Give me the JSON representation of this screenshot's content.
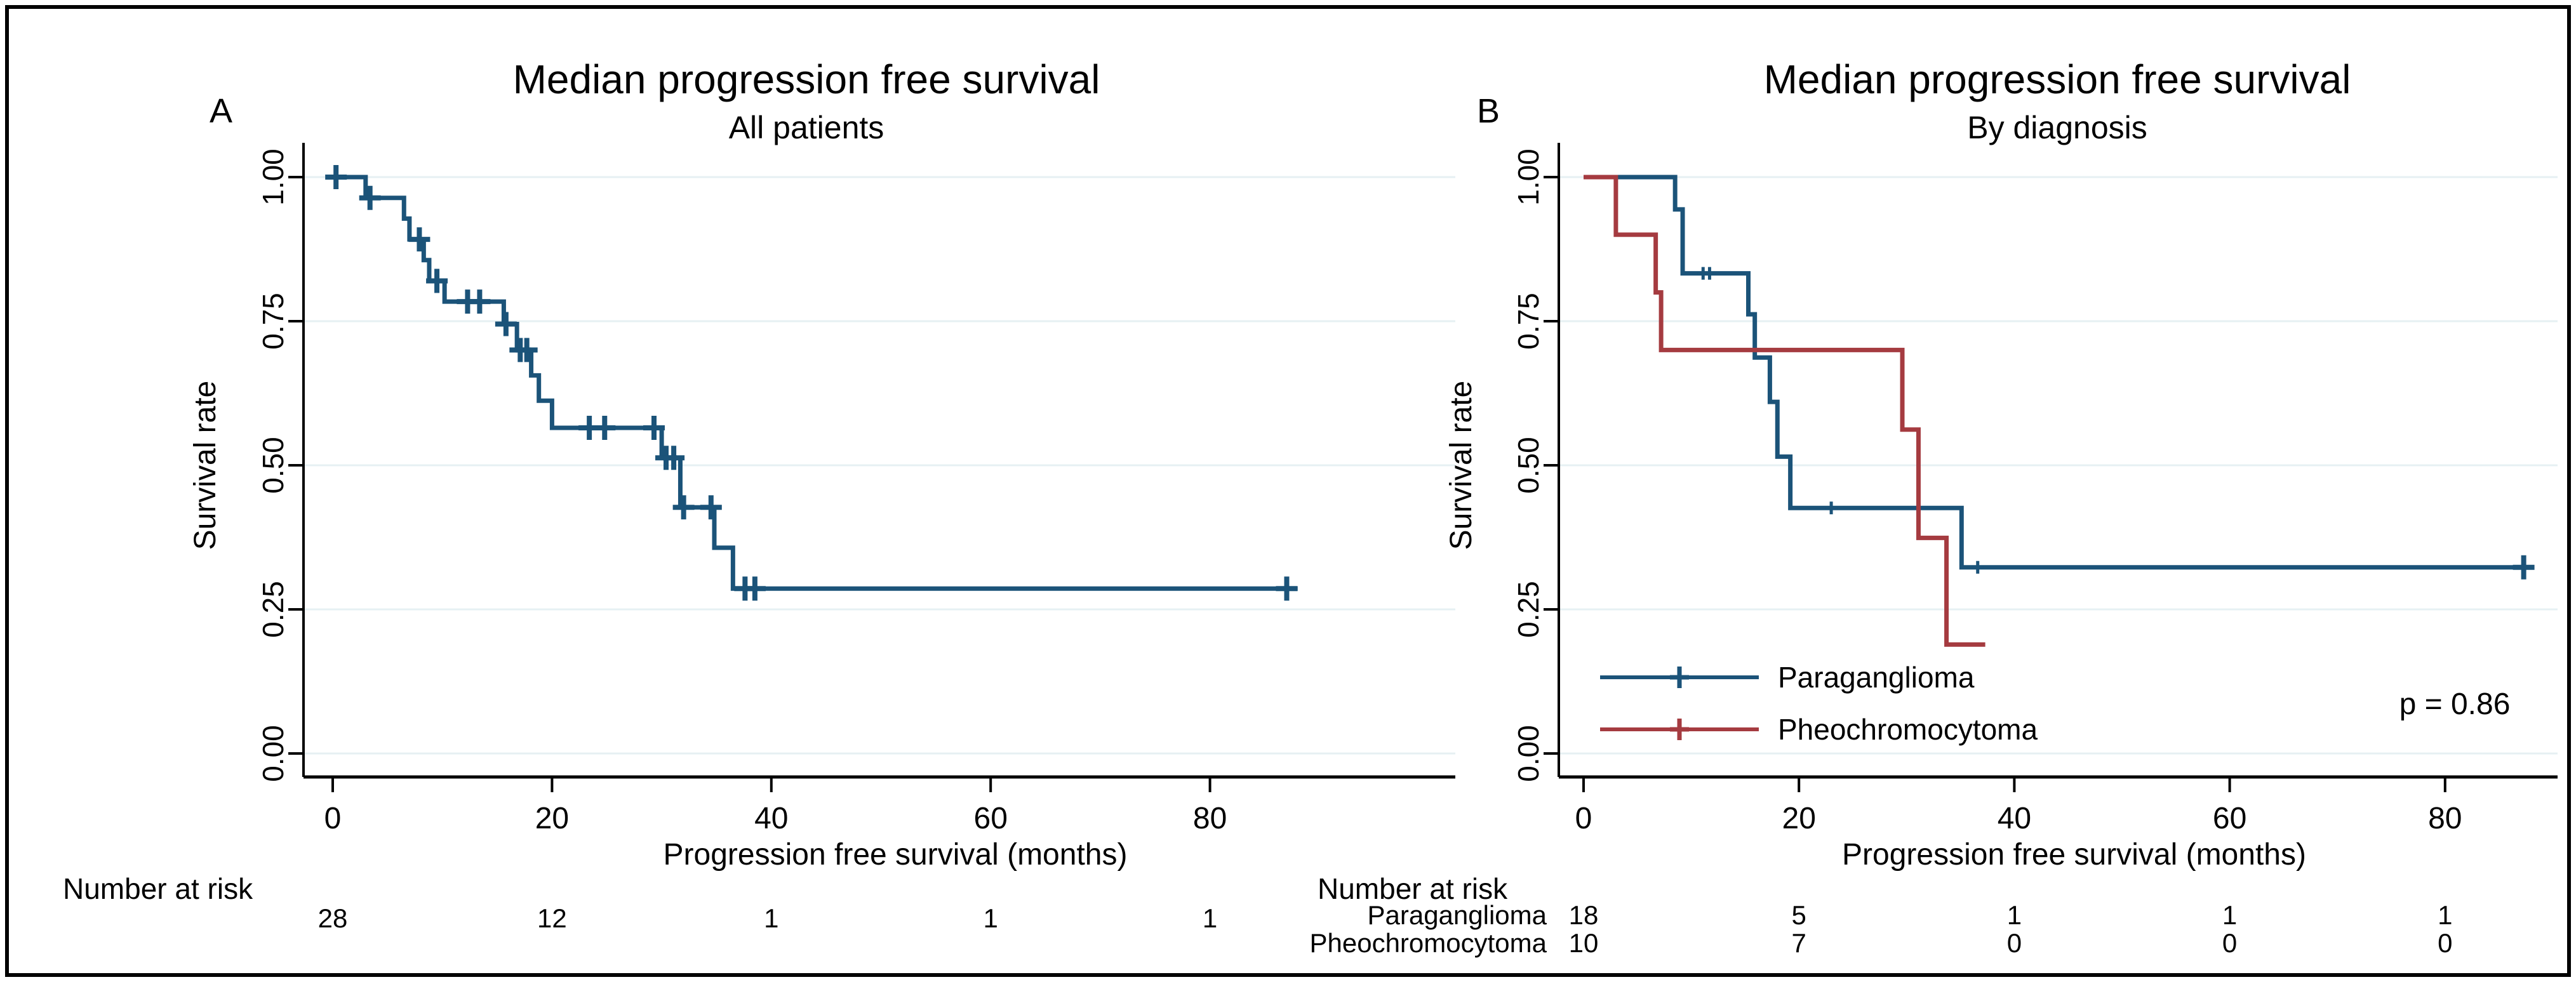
{
  "figure": {
    "kind": "Kaplan-Meier survival figure, two panels",
    "background": "#ffffff",
    "border_color": "#000000",
    "grid_color": "#e6f0f3",
    "axis_color": "#000000"
  },
  "chart_data": [
    {
      "type": "line",
      "km_style": true,
      "panel_label": "A",
      "title": "Median progression free survival",
      "subtitle": "All patients",
      "xlabel": "Progression free survival (months)",
      "ylabel": "Survival rate",
      "x_ticks": [
        0,
        20,
        40,
        60,
        80
      ],
      "y_ticks": [
        {
          "value": 0.0,
          "label": "0.00"
        },
        {
          "value": 0.25,
          "label": "0.25"
        },
        {
          "value": 0.5,
          "label": "0.50"
        },
        {
          "value": 0.75,
          "label": "0.75"
        },
        {
          "value": 1.0,
          "label": "1.00"
        }
      ],
      "xlim": [
        0,
        102
      ],
      "ylim": [
        0,
        1
      ],
      "series": [
        {
          "name": "All patients",
          "color": "#1b5379",
          "steps": [
            [
              0,
              1.0
            ],
            [
              3.0,
              0.964
            ],
            [
              6.5,
              0.928
            ],
            [
              7.0,
              0.892
            ],
            [
              8.3,
              0.856
            ],
            [
              8.8,
              0.82
            ],
            [
              10.2,
              0.784
            ],
            [
              15.6,
              0.745
            ],
            [
              16.8,
              0.7
            ],
            [
              18.1,
              0.656
            ],
            [
              18.8,
              0.612
            ],
            [
              20.0,
              0.565
            ],
            [
              30.0,
              0.513
            ],
            [
              31.7,
              0.427
            ],
            [
              34.8,
              0.357
            ],
            [
              36.5,
              0.286
            ]
          ],
          "end_time": 88.0,
          "censors": [
            0.3,
            3.4,
            7.9,
            9.5,
            12.3,
            13.4,
            15.8,
            17.1,
            17.7,
            23.4,
            24.8,
            29.3,
            30.4,
            31.1,
            32.0,
            34.5,
            37.6,
            38.5,
            87.0
          ],
          "small_censors": []
        }
      ],
      "risk_table": {
        "header": "Number at risk",
        "rows": [
          {
            "label": "",
            "values": [
              "28",
              "12",
              "1",
              "1",
              "1"
            ]
          }
        ]
      }
    },
    {
      "type": "line",
      "km_style": true,
      "panel_label": "B",
      "title": "Median progression free survival",
      "subtitle": "By diagnosis",
      "xlabel": "Progression free survival (months)",
      "ylabel": "Survival rate",
      "x_ticks": [
        0,
        20,
        40,
        60,
        80
      ],
      "y_ticks": [
        {
          "value": 0.0,
          "label": "0.00"
        },
        {
          "value": 0.25,
          "label": "0.25"
        },
        {
          "value": 0.5,
          "label": "0.50"
        },
        {
          "value": 0.75,
          "label": "0.75"
        },
        {
          "value": 1.0,
          "label": "1.00"
        }
      ],
      "xlim": [
        0,
        90
      ],
      "ylim": [
        0,
        1
      ],
      "annotation": "p = 0.86",
      "series": [
        {
          "name": "Paraganglioma",
          "color": "#1b5379",
          "steps": [
            [
              0,
              1.0
            ],
            [
              8.5,
              0.944
            ],
            [
              9.2,
              0.833
            ],
            [
              15.3,
              0.762
            ],
            [
              15.9,
              0.687
            ],
            [
              17.3,
              0.61
            ],
            [
              18.0,
              0.515
            ],
            [
              19.2,
              0.426
            ],
            [
              35.1,
              0.323
            ]
          ],
          "end_time": 88.0,
          "censors": [
            87.3
          ],
          "small_censors": [
            11.1,
            11.7,
            23.0,
            36.6
          ]
        },
        {
          "name": "Pheochromocytoma",
          "color": "#a53b40",
          "steps": [
            [
              0,
              1.0
            ],
            [
              3.0,
              0.9
            ],
            [
              6.7,
              0.8
            ],
            [
              7.2,
              0.7
            ],
            [
              29.6,
              0.562
            ],
            [
              31.1,
              0.374
            ],
            [
              33.7,
              0.189
            ]
          ],
          "end_time": 37.3,
          "censors": [],
          "small_censors": []
        }
      ],
      "legend": [
        {
          "name": "Paraganglioma",
          "color": "#1b5379"
        },
        {
          "name": "Pheochromocytoma",
          "color": "#a53b40"
        }
      ],
      "risk_table": {
        "header": "Number at risk",
        "rows": [
          {
            "label": "Paraganglioma",
            "values": [
              "18",
              "5",
              "1",
              "1",
              "1"
            ]
          },
          {
            "label": "Pheochromocytoma",
            "values": [
              "10",
              "7",
              "0",
              "0",
              "0"
            ]
          }
        ]
      }
    }
  ]
}
